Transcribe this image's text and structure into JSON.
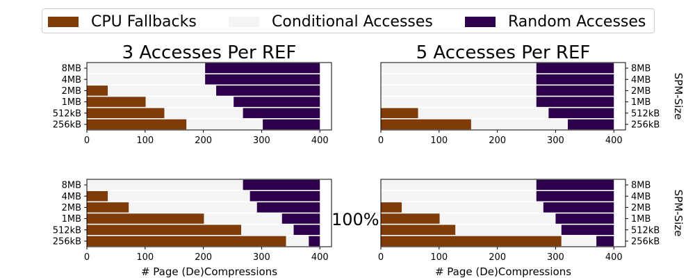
{
  "legend": {
    "items": [
      {
        "label": "CPU Fallbacks",
        "color": "#7f3b08"
      },
      {
        "label": "Conditional Accesses",
        "color": "#f4f4f4"
      },
      {
        "label": "Random Accesses",
        "color": "#2d004b"
      }
    ]
  },
  "center_label": "100%",
  "chart_data": [
    {
      "type": "bar",
      "orientation": "horizontal",
      "stacked": true,
      "title": "3  Accesses Per REF",
      "xlabel": "",
      "ylabel": "",
      "xlim": [
        0,
        420
      ],
      "xticks": [
        0,
        100,
        200,
        300,
        400
      ],
      "categories": [
        "8MB",
        "4MB",
        "2MB",
        "1MB",
        "512kB",
        "256kB"
      ],
      "series": [
        {
          "name": "CPU Fallbacks",
          "values": [
            0,
            0,
            36,
            101,
            133,
            171
          ]
        },
        {
          "name": "Conditional Accesses",
          "values": [
            203,
            203,
            186,
            151,
            135,
            131
          ]
        },
        {
          "name": "Random Accesses",
          "values": [
            197,
            197,
            178,
            148,
            132,
            98
          ]
        }
      ]
    },
    {
      "type": "bar",
      "orientation": "horizontal",
      "stacked": true,
      "title": "5  Accesses Per REF",
      "xlabel": "",
      "ylabel": "SPM-Size",
      "xlim": [
        0,
        420
      ],
      "xticks": [
        0,
        100,
        200,
        300,
        400
      ],
      "categories": [
        "8MB",
        "4MB",
        "2MB",
        "1MB",
        "512kB",
        "256kB"
      ],
      "series": [
        {
          "name": "CPU Fallbacks",
          "values": [
            0,
            0,
            0,
            0,
            64,
            155
          ]
        },
        {
          "name": "Conditional Accesses",
          "values": [
            267,
            267,
            267,
            267,
            224,
            166
          ]
        },
        {
          "name": "Random Accesses",
          "values": [
            133,
            133,
            133,
            133,
            112,
            79
          ]
        }
      ]
    },
    {
      "type": "bar",
      "orientation": "horizontal",
      "stacked": true,
      "title": "",
      "xlabel": "# Page (De)Compressions",
      "ylabel": "",
      "xlim": [
        0,
        420
      ],
      "xticks": [
        0,
        100,
        200,
        300,
        400
      ],
      "categories": [
        "8MB",
        "4MB",
        "2MB",
        "1MB",
        "512kB",
        "256kB"
      ],
      "series": [
        {
          "name": "CPU Fallbacks",
          "values": [
            0,
            36,
            72,
            201,
            265,
            342
          ]
        },
        {
          "name": "Conditional Accesses",
          "values": [
            268,
            244,
            220,
            134,
            90,
            39
          ]
        },
        {
          "name": "Random Accesses",
          "values": [
            132,
            120,
            108,
            65,
            45,
            19
          ]
        }
      ]
    },
    {
      "type": "bar",
      "orientation": "horizontal",
      "stacked": true,
      "title": "",
      "xlabel": "# Page (De)Compressions",
      "ylabel": "SPM-Size",
      "xlim": [
        0,
        420
      ],
      "xticks": [
        0,
        100,
        200,
        300,
        400
      ],
      "categories": [
        "8MB",
        "4MB",
        "2MB",
        "1MB",
        "512kB",
        "256kB"
      ],
      "series": [
        {
          "name": "CPU Fallbacks",
          "values": [
            0,
            0,
            36,
            101,
            128,
            310
          ]
        },
        {
          "name": "Conditional Accesses",
          "values": [
            267,
            267,
            243,
            199,
            182,
            60
          ]
        },
        {
          "name": "Random Accesses",
          "values": [
            133,
            133,
            121,
            100,
            90,
            30
          ]
        }
      ]
    }
  ]
}
